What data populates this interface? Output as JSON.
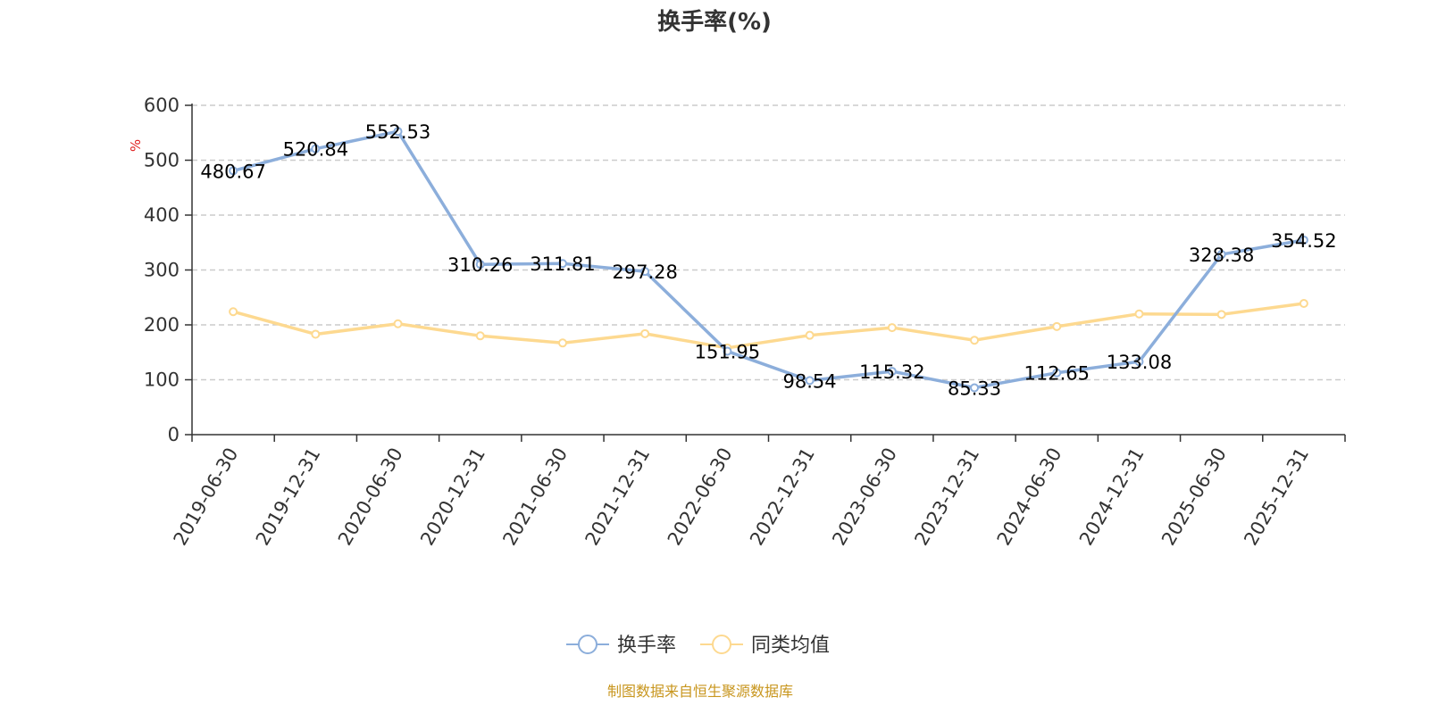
{
  "colors": {
    "series1": "#8caedb",
    "series2": "#fdd990",
    "axis": "#333333",
    "grid": "#cccccc",
    "unit": "#e02020",
    "source": "#c8961e"
  },
  "source_text": "制图数据来自恒生聚源数据库",
  "chart_data": {
    "type": "line",
    "title": "换手率(%)",
    "ylabel": "%",
    "xlabel": "",
    "ylim": [
      0,
      600
    ],
    "yticks": [
      "0",
      "100",
      "200",
      "300",
      "400",
      "500",
      "600"
    ],
    "grid": true,
    "legend_position": "bottom-center",
    "categories": [
      "2019-06-30",
      "2019-12-31",
      "2020-06-30",
      "2020-12-31",
      "2021-06-30",
      "2021-12-31",
      "2022-06-30",
      "2022-12-31",
      "2023-06-30",
      "2023-12-31",
      "2024-06-30",
      "2024-12-31",
      "2025-06-30",
      "2025-12-31"
    ],
    "series": [
      {
        "name": "换手率",
        "values": [
          480.67,
          520.84,
          552.53,
          310.26,
          311.81,
          297.28,
          151.95,
          98.54,
          115.32,
          85.33,
          112.65,
          133.08,
          328.38,
          354.52
        ],
        "labels": [
          "480.67",
          "520.84",
          "552.53",
          "310.26",
          "311.81",
          "297.28",
          "151.95",
          "98.54",
          "115.32",
          "85.33",
          "112.65",
          "133.08",
          "328.38",
          "354.52"
        ]
      },
      {
        "name": "同类均值",
        "values": [
          224,
          183,
          202,
          180,
          167,
          184,
          158,
          181,
          195,
          172,
          197,
          220,
          219,
          239
        ]
      }
    ]
  }
}
